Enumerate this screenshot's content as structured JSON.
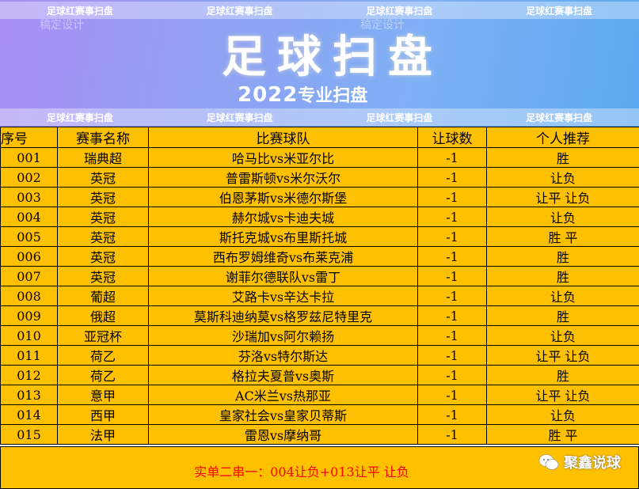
{
  "banner": {
    "strip_text": "足球红赛事扫盘",
    "watermark": "稿定设计",
    "title": "足球扫盘",
    "year": "2022",
    "subtitle": "专业扫盘"
  },
  "table": {
    "headers": [
      "序号",
      "赛事名称",
      "比赛球队",
      "让球数",
      "个人推荐"
    ],
    "rows": [
      [
        "001",
        "瑞典超",
        "哈马比vs米亚尔比",
        "-1",
        "胜"
      ],
      [
        "002",
        "英冠",
        "普雷斯顿vs米尔沃尔",
        "-1",
        "让负"
      ],
      [
        "003",
        "英冠",
        "伯恩茅斯vs米德尔斯堡",
        "-1",
        "让平 让负"
      ],
      [
        "004",
        "英冠",
        "赫尔城vs卡迪夫城",
        "-1",
        "让负"
      ],
      [
        "005",
        "英冠",
        "斯托克城vs布里斯托城",
        "-1",
        "胜 平"
      ],
      [
        "006",
        "英冠",
        "西布罗姆维奇vs布莱克浦",
        "-1",
        "胜"
      ],
      [
        "007",
        "英冠",
        "谢菲尔德联队vs雷丁",
        "-1",
        "胜"
      ],
      [
        "008",
        "葡超",
        "艾路卡vs辛达卡拉",
        "-1",
        "让负"
      ],
      [
        "009",
        "俄超",
        "莫斯科迪纳莫vs格罗兹尼特里克",
        "-1",
        "胜"
      ],
      [
        "010",
        "亚冠杯",
        "沙瑞加vs阿尔赖扬",
        "-1",
        "让负"
      ],
      [
        "011",
        "荷乙",
        "芬洛vs特尔斯达",
        "-1",
        "让平 让负"
      ],
      [
        "012",
        "荷乙",
        "格拉夫夏普vs奥斯",
        "-1",
        "胜"
      ],
      [
        "013",
        "意甲",
        "AC米兰vs热那亚",
        "-1",
        "让平 让负"
      ],
      [
        "014",
        "西甲",
        "皇家社会vs皇家贝蒂斯",
        "-1",
        "让负"
      ],
      [
        "015",
        "法甲",
        "雷恩vs摩纳哥",
        "-1",
        "胜 平"
      ]
    ]
  },
  "footer": {
    "recommendation": "实单二串一：004让负+013让平 让负",
    "brand": "聚鑫说球",
    "icon": "wechat-icon"
  },
  "colors": {
    "table_bg": "#ffc000",
    "highlight_text": "#ff0000"
  }
}
